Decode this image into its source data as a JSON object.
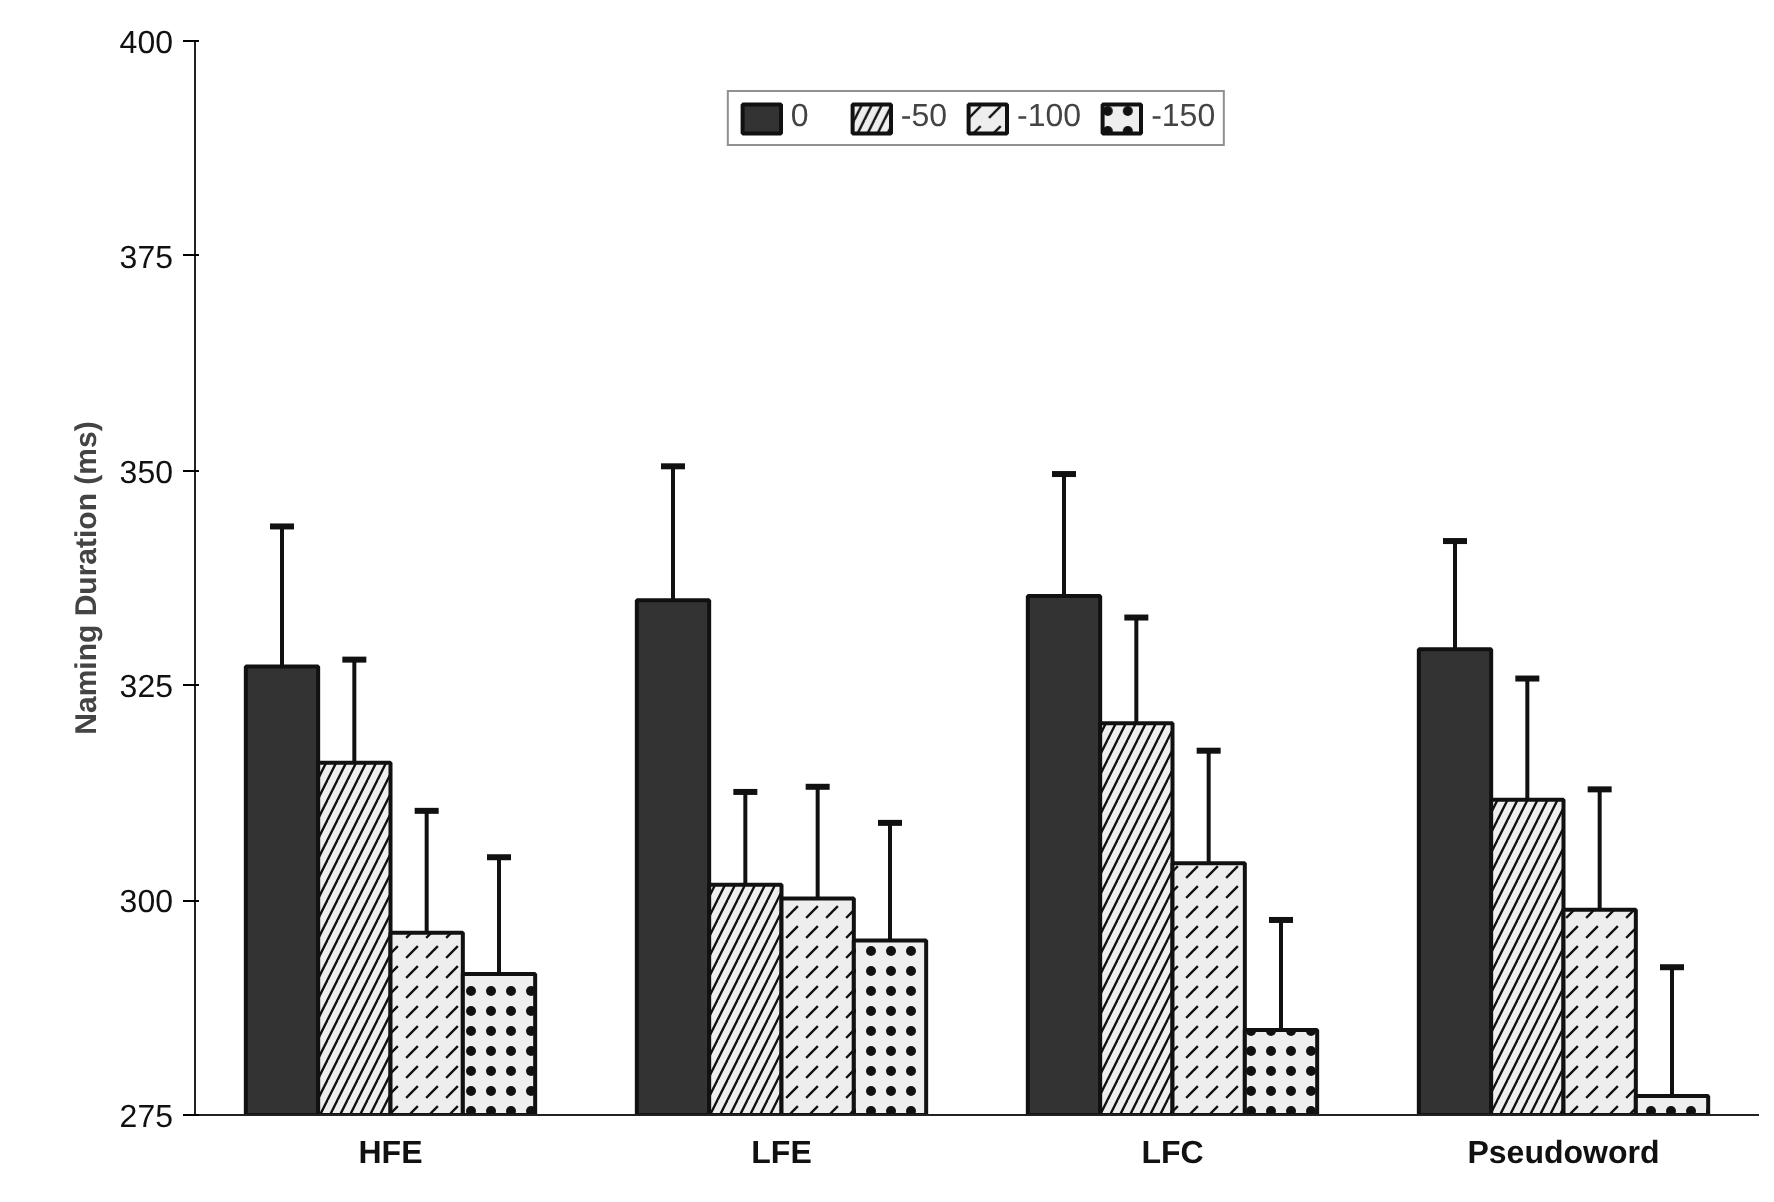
{
  "chart_data": {
    "type": "bar",
    "ylabel": "Naming Duration (ms)",
    "categories": [
      "HFE",
      "LFE",
      "LFC",
      "Pseudoword"
    ],
    "series": [
      {
        "name": "0",
        "color": "#333333",
        "values": [
          327.2,
          334.9,
          335.4,
          329.2
        ],
        "errors": [
          [
            327.2,
            343.5
          ],
          [
            334.9,
            350.5
          ],
          [
            335.4,
            349.6
          ],
          [
            329.2,
            341.8
          ]
        ]
      },
      {
        "name": "-50",
        "color": "#eeeeee",
        "values": [
          316,
          301.8,
          320.6,
          311.7
        ],
        "errors": [
          [
            316,
            328
          ],
          [
            301.8,
            312.6
          ],
          [
            320.6,
            332.9
          ],
          [
            311.7,
            325.8
          ]
        ]
      },
      {
        "name": "-100",
        "color": "#eeeeee",
        "values": [
          296.2,
          300.2,
          304.3,
          298.9
        ],
        "errors": [
          [
            296.2,
            310.4
          ],
          [
            300.2,
            313.2
          ],
          [
            304.3,
            317.4
          ],
          [
            298.9,
            312.9
          ]
        ]
      },
      {
        "name": "-150",
        "color": "#eeeeee",
        "values": [
          291.4,
          295.3,
          284.9,
          277.2
        ],
        "errors": [
          [
            291.4,
            305
          ],
          [
            295.3,
            309
          ],
          [
            284.9,
            297.7
          ],
          [
            277.2,
            292.2
          ]
        ]
      }
    ],
    "ylim": [
      275,
      400
    ],
    "yticks": [
      275,
      300,
      325,
      350,
      375,
      400
    ],
    "grid": false,
    "legend": "top"
  }
}
